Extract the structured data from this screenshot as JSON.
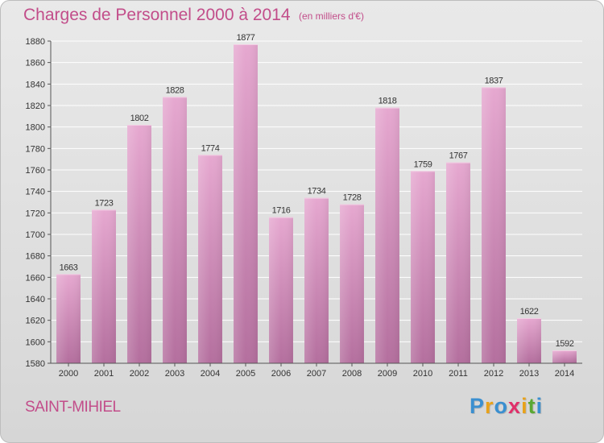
{
  "title": "Charges de Personnel 2000 à 2014",
  "subtitle": "(en milliers d'€)",
  "place": "SAINT-MIHIEL",
  "logo": {
    "text": "Proxiti",
    "letters": [
      {
        "ch": "P",
        "color": "#3a8fd0"
      },
      {
        "ch": "r",
        "color": "#e8a21a"
      },
      {
        "ch": "o",
        "color": "#3a8fd0"
      },
      {
        "ch": "x",
        "color": "#e0306a"
      },
      {
        "ch": "i",
        "color": "#e8a21a"
      },
      {
        "ch": "t",
        "color": "#5aa832"
      },
      {
        "ch": "i",
        "color": "#3a8fd0"
      }
    ]
  },
  "colors": {
    "text_accent": "#c24d8a",
    "bar_top": "#e6a8d0",
    "bar_bottom": "#b46f9e",
    "grid": "#ffffff",
    "axis": "#555555"
  },
  "chart_data": {
    "type": "bar",
    "title": "Charges de Personnel 2000 à 2014",
    "subtitle": "(en milliers d'€)",
    "xlabel": "",
    "ylabel": "",
    "categories": [
      "2000",
      "2001",
      "2002",
      "2003",
      "2004",
      "2005",
      "2006",
      "2007",
      "2008",
      "2009",
      "2010",
      "2011",
      "2012",
      "2013",
      "2014"
    ],
    "values": [
      1663,
      1723,
      1802,
      1828,
      1774,
      1877,
      1716,
      1734,
      1728,
      1818,
      1759,
      1767,
      1837,
      1622,
      1592
    ],
    "ylim": [
      1580,
      1880
    ],
    "yticks": [
      1580,
      1600,
      1620,
      1640,
      1660,
      1680,
      1700,
      1720,
      1740,
      1760,
      1780,
      1800,
      1820,
      1840,
      1860,
      1880
    ],
    "grid": true,
    "data_labels": true
  }
}
